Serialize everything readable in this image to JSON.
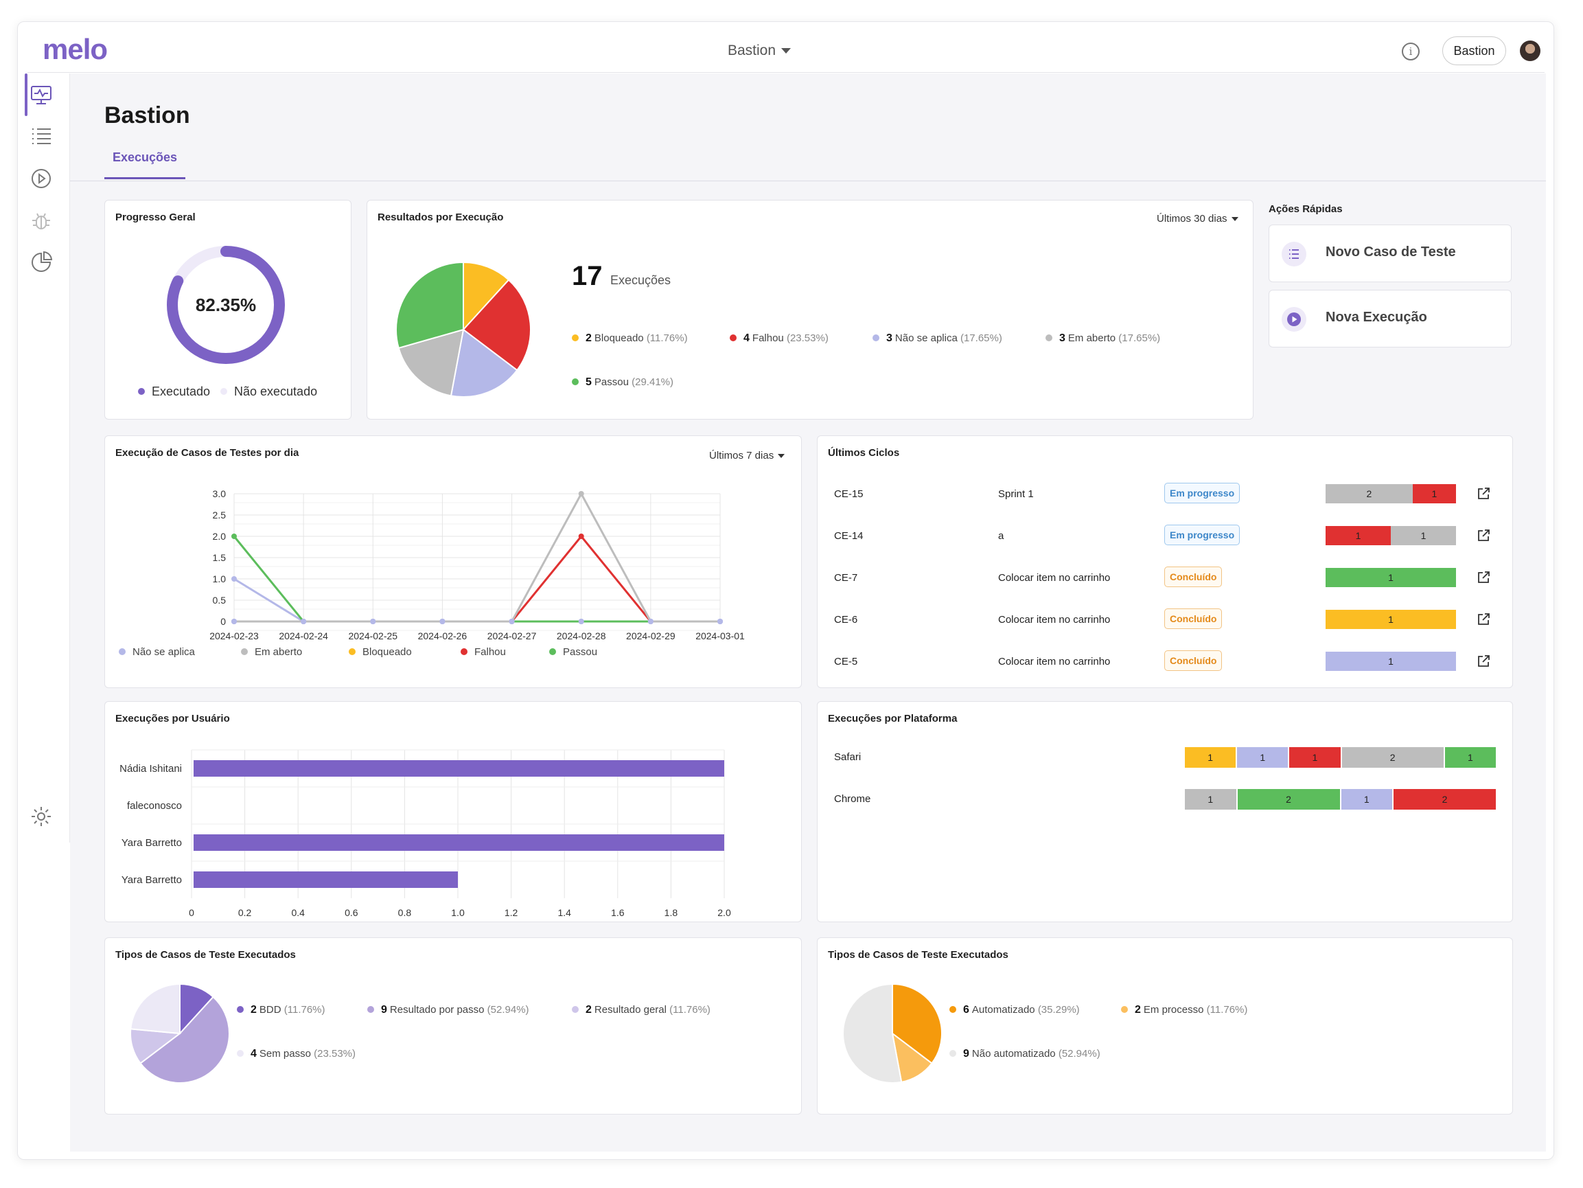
{
  "app": {
    "logo": "melo",
    "project_selector": "Bastion",
    "user_button": "Bastion"
  },
  "nav": [
    "monitor-icon",
    "list-icon",
    "play-circle-icon",
    "bug-icon",
    "pie-chart-icon",
    "gear-icon"
  ],
  "page": {
    "title": "Bastion",
    "tab": "Execuções"
  },
  "progress": {
    "title": "Progresso Geral",
    "value_label": "82.35%",
    "value": 82.35,
    "legend": [
      "Executado",
      "Não executado"
    ]
  },
  "results": {
    "title": "Resultados por Execução",
    "filter": "Últimos 30 dias",
    "count": "17",
    "count_label": "Execuções",
    "items": [
      {
        "n": "2",
        "label": "Bloqueado",
        "pct": "(11.76%)",
        "color": "#fbbd23"
      },
      {
        "n": "4",
        "label": "Falhou",
        "pct": "(23.53%)",
        "color": "#e03131"
      },
      {
        "n": "3",
        "label": "Não se aplica",
        "pct": "(17.65%)",
        "color": "#b4b8e8"
      },
      {
        "n": "3",
        "label": "Em aberto",
        "pct": "(17.65%)",
        "color": "#bdbdbd"
      },
      {
        "n": "5",
        "label": "Passou",
        "pct": "(29.41%)",
        "color": "#5cbd5c"
      }
    ]
  },
  "quick": {
    "title": "Ações Rápidas",
    "new_case": "Novo Caso de Teste",
    "new_exec": "Nova Execução"
  },
  "daily": {
    "title": "Execução de Casos de Testes por dia",
    "filter": "Últimos 7 dias",
    "legend": [
      {
        "label": "Não se aplica",
        "color": "#b4b8e8"
      },
      {
        "label": "Em aberto",
        "color": "#bdbdbd"
      },
      {
        "label": "Bloqueado",
        "color": "#fbbd23"
      },
      {
        "label": "Falhou",
        "color": "#e03131"
      },
      {
        "label": "Passou",
        "color": "#5cbd5c"
      }
    ]
  },
  "cycles": {
    "title": "Últimos Ciclos",
    "rows": [
      {
        "id": "CE-15",
        "name": "Sprint 1",
        "status": "Em progresso",
        "kind": "prog",
        "segs": [
          {
            "v": "2",
            "c": "#bdbdbd",
            "w": 2
          },
          {
            "v": "1",
            "c": "#e03131",
            "w": 1
          }
        ]
      },
      {
        "id": "CE-14",
        "name": "a",
        "status": "Em progresso",
        "kind": "prog",
        "segs": [
          {
            "v": "1",
            "c": "#e03131",
            "w": 1
          },
          {
            "v": "1",
            "c": "#bdbdbd",
            "w": 1
          }
        ]
      },
      {
        "id": "CE-7",
        "name": "Colocar item no carrinho",
        "status": "Concluído",
        "kind": "done",
        "segs": [
          {
            "v": "1",
            "c": "#5cbd5c",
            "w": 1
          }
        ]
      },
      {
        "id": "CE-6",
        "name": "Colocar item no carrinho",
        "status": "Concluído",
        "kind": "done",
        "segs": [
          {
            "v": "1",
            "c": "#fbbd23",
            "w": 1
          }
        ]
      },
      {
        "id": "CE-5",
        "name": "Colocar item no carrinho",
        "status": "Concluído",
        "kind": "done",
        "segs": [
          {
            "v": "1",
            "c": "#b4b8e8",
            "w": 1
          }
        ]
      }
    ]
  },
  "by_user": {
    "title": "Execuções por Usuário"
  },
  "platform": {
    "title": "Execuções por Plataforma",
    "rows": [
      {
        "name": "Safari",
        "segs": [
          {
            "v": "1",
            "c": "#fbbd23",
            "w": 1
          },
          {
            "v": "1",
            "c": "#b4b8e8",
            "w": 1
          },
          {
            "v": "1",
            "c": "#e03131",
            "w": 1
          },
          {
            "v": "2",
            "c": "#bdbdbd",
            "w": 2
          },
          {
            "v": "1",
            "c": "#5cbd5c",
            "w": 1
          }
        ]
      },
      {
        "name": "Chrome",
        "segs": [
          {
            "v": "1",
            "c": "#bdbdbd",
            "w": 1
          },
          {
            "v": "2",
            "c": "#5cbd5c",
            "w": 2
          },
          {
            "v": "1",
            "c": "#b4b8e8",
            "w": 1
          },
          {
            "v": "2",
            "c": "#e03131",
            "w": 2
          }
        ]
      }
    ]
  },
  "types1": {
    "title": "Tipos de Casos de Teste Executados",
    "items": [
      {
        "n": "2",
        "label": "BDD",
        "pct": "(11.76%)",
        "color": "#7c62c5"
      },
      {
        "n": "9",
        "label": "Resultado por passo",
        "pct": "(52.94%)",
        "color": "#b3a3da"
      },
      {
        "n": "2",
        "label": "Resultado geral",
        "pct": "(11.76%)",
        "color": "#cfc6ea"
      },
      {
        "n": "4",
        "label": "Sem passo",
        "pct": "(23.53%)",
        "color": "#ece9f6"
      }
    ]
  },
  "types2": {
    "title": "Tipos de Casos de Teste Executados",
    "items": [
      {
        "n": "6",
        "label": "Automatizado",
        "pct": "(35.29%)",
        "color": "#f59a0c"
      },
      {
        "n": "2",
        "label": "Em processo",
        "pct": "(11.76%)",
        "color": "#fbbf5f"
      },
      {
        "n": "9",
        "label": "Não automatizado",
        "pct": "(52.94%)",
        "color": "#e8e8e8"
      }
    ]
  },
  "chart_data": [
    {
      "type": "pie",
      "title": "Resultados por Execução",
      "categories": [
        "Bloqueado",
        "Falhou",
        "Não se aplica",
        "Em aberto",
        "Passou"
      ],
      "values": [
        2,
        4,
        3,
        3,
        5
      ]
    },
    {
      "type": "line",
      "title": "Execução de Casos de Testes por dia",
      "x": [
        "2024-02-23",
        "2024-02-24",
        "2024-02-25",
        "2024-02-26",
        "2024-02-27",
        "2024-02-28",
        "2024-02-29",
        "2024-03-01"
      ],
      "yticks": [
        "0",
        "0.5",
        "1.0",
        "1.5",
        "2.0",
        "2.5",
        "3.0"
      ],
      "ylim": [
        0,
        3
      ],
      "series": [
        {
          "name": "Não se aplica",
          "color": "#b4b8e8",
          "values": [
            1,
            0,
            0,
            0,
            0,
            0,
            0,
            0
          ]
        },
        {
          "name": "Em aberto",
          "color": "#bdbdbd",
          "values": [
            0,
            0,
            0,
            0,
            0,
            3,
            0,
            0
          ]
        },
        {
          "name": "Bloqueado",
          "color": "#fbbd23",
          "values": [
            0,
            0,
            0,
            0,
            0,
            0,
            0,
            0
          ]
        },
        {
          "name": "Falhou",
          "color": "#e03131",
          "values": [
            0,
            0,
            0,
            0,
            0,
            2,
            0,
            0
          ]
        },
        {
          "name": "Passou",
          "color": "#5cbd5c",
          "values": [
            2,
            0,
            0,
            0,
            0,
            0,
            0,
            0
          ]
        }
      ]
    },
    {
      "type": "bar",
      "title": "Execuções por Usuário",
      "categories": [
        "Nádia Ishitani",
        "faleconosco",
        "Yara Barretto",
        "Yara Barretto"
      ],
      "values": [
        2,
        0,
        2,
        1
      ],
      "xticks": [
        "0",
        "0.2",
        "0.4",
        "0.6",
        "0.8",
        "1.0",
        "1.2",
        "1.4",
        "1.6",
        "1.8",
        "2.0"
      ],
      "xlim": [
        0,
        2
      ],
      "color": "#7c62c5"
    },
    {
      "type": "pie",
      "title": "Tipos de Casos de Teste Executados",
      "categories": [
        "BDD",
        "Resultado por passo",
        "Resultado geral",
        "Sem passo"
      ],
      "values": [
        2,
        9,
        2,
        4
      ]
    },
    {
      "type": "pie",
      "title": "Tipos de Casos de Teste Executados",
      "categories": [
        "Automatizado",
        "Em processo",
        "Não automatizado"
      ],
      "values": [
        6,
        2,
        9
      ]
    }
  ]
}
